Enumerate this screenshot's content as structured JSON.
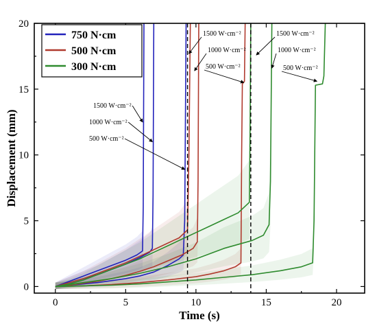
{
  "chart_data": {
    "type": "line",
    "title": "",
    "xlabel": "Time (s)",
    "ylabel": "Displacement (mm)",
    "xlim": [
      -1.5,
      22
    ],
    "ylim": [
      -0.5,
      20
    ],
    "xticks": [
      0,
      5,
      10,
      15,
      20
    ],
    "yticks": [
      0,
      5,
      10,
      15,
      20
    ],
    "grid": false,
    "legend_position": "top-left",
    "groups": [
      {
        "name": "750 N·cm",
        "color": "#2222bb"
      },
      {
        "name": "500 N·cm",
        "color": "#b03a2e"
      },
      {
        "name": "300 N·cm",
        "color": "#2e8b2e"
      }
    ],
    "series": [
      {
        "group": 0,
        "power": "1500 W·cm⁻²",
        "points": [
          [
            0,
            0
          ],
          [
            1,
            0.4
          ],
          [
            2,
            0.8
          ],
          [
            3,
            1.2
          ],
          [
            4,
            1.6
          ],
          [
            5,
            2.0
          ],
          [
            5.8,
            2.4
          ],
          [
            6.2,
            2.7
          ],
          [
            6.25,
            6
          ],
          [
            6.3,
            20
          ]
        ]
      },
      {
        "group": 0,
        "power": "1000 W·cm⁻²",
        "points": [
          [
            0,
            0
          ],
          [
            1,
            0.3
          ],
          [
            2,
            0.6
          ],
          [
            3,
            0.9
          ],
          [
            4,
            1.3
          ],
          [
            5,
            1.7
          ],
          [
            6,
            2.2
          ],
          [
            6.7,
            2.6
          ],
          [
            6.9,
            2.9
          ],
          [
            6.95,
            7
          ],
          [
            7.0,
            20
          ]
        ]
      },
      {
        "group": 0,
        "power": "500 W·cm⁻²",
        "points": [
          [
            0,
            0
          ],
          [
            1,
            0.1
          ],
          [
            2,
            0.2
          ],
          [
            3,
            0.3
          ],
          [
            4,
            0.45
          ],
          [
            5,
            0.6
          ],
          [
            6,
            0.8
          ],
          [
            7,
            1.1
          ],
          [
            8,
            1.6
          ],
          [
            8.8,
            2.1
          ],
          [
            9.1,
            2.4
          ],
          [
            9.2,
            5
          ],
          [
            9.3,
            20
          ]
        ]
      },
      {
        "group": 1,
        "power": "1500 W·cm⁻²",
        "points": [
          [
            0,
            0
          ],
          [
            1,
            0.3
          ],
          [
            2,
            0.6
          ],
          [
            3,
            1.0
          ],
          [
            4,
            1.4
          ],
          [
            5,
            1.8
          ],
          [
            6,
            2.3
          ],
          [
            7,
            2.8
          ],
          [
            8,
            3.3
          ],
          [
            8.8,
            3.7
          ],
          [
            9.4,
            4.3
          ],
          [
            9.5,
            10
          ],
          [
            9.6,
            20
          ]
        ]
      },
      {
        "group": 1,
        "power": "1000 W·cm⁻²",
        "points": [
          [
            0,
            0
          ],
          [
            1,
            0.1
          ],
          [
            2,
            0.25
          ],
          [
            3,
            0.4
          ],
          [
            4,
            0.6
          ],
          [
            5,
            0.85
          ],
          [
            6,
            1.15
          ],
          [
            7,
            1.5
          ],
          [
            8,
            1.95
          ],
          [
            9,
            2.4
          ],
          [
            9.8,
            2.9
          ],
          [
            10.1,
            3.4
          ],
          [
            10.15,
            8
          ],
          [
            10.2,
            20
          ]
        ]
      },
      {
        "group": 1,
        "power": "500 W·cm⁻²",
        "points": [
          [
            0,
            0
          ],
          [
            2,
            0.05
          ],
          [
            4,
            0.15
          ],
          [
            6,
            0.3
          ],
          [
            8,
            0.5
          ],
          [
            10,
            0.75
          ],
          [
            11,
            0.95
          ],
          [
            12,
            1.2
          ],
          [
            12.8,
            1.5
          ],
          [
            13.2,
            1.8
          ],
          [
            13.25,
            10
          ],
          [
            13.3,
            15.4
          ],
          [
            13.45,
            15.6
          ],
          [
            13.5,
            20
          ]
        ]
      },
      {
        "group": 2,
        "power": "1500 W·cm⁻²",
        "points": [
          [
            0,
            0
          ],
          [
            1,
            0.2
          ],
          [
            2,
            0.5
          ],
          [
            3,
            0.9
          ],
          [
            4,
            1.3
          ],
          [
            5,
            1.7
          ],
          [
            6,
            2.1
          ],
          [
            7,
            2.6
          ],
          [
            8,
            3.1
          ],
          [
            9,
            3.6
          ],
          [
            10,
            4.1
          ],
          [
            11,
            4.6
          ],
          [
            12,
            5.1
          ],
          [
            13,
            5.6
          ],
          [
            13.6,
            6.2
          ],
          [
            13.8,
            6.4
          ],
          [
            13.85,
            12
          ],
          [
            13.9,
            20
          ]
        ]
      },
      {
        "group": 2,
        "power": "1000 W·cm⁻²",
        "points": [
          [
            0,
            0
          ],
          [
            2,
            0.3
          ],
          [
            4,
            0.6
          ],
          [
            6,
            1.0
          ],
          [
            8,
            1.5
          ],
          [
            10,
            2.1
          ],
          [
            11,
            2.5
          ],
          [
            12,
            2.9
          ],
          [
            13,
            3.2
          ],
          [
            14,
            3.5
          ],
          [
            14.8,
            3.9
          ],
          [
            15.2,
            4.7
          ],
          [
            15.3,
            8
          ],
          [
            15.4,
            20
          ]
        ]
      },
      {
        "group": 2,
        "power": "500 W·cm⁻²",
        "points": [
          [
            0,
            0
          ],
          [
            2,
            0.05
          ],
          [
            4,
            0.1
          ],
          [
            6,
            0.2
          ],
          [
            8,
            0.35
          ],
          [
            10,
            0.5
          ],
          [
            12,
            0.7
          ],
          [
            14,
            0.9
          ],
          [
            16,
            1.2
          ],
          [
            17.5,
            1.5
          ],
          [
            18.3,
            1.8
          ],
          [
            18.4,
            5
          ],
          [
            18.5,
            15.3
          ],
          [
            19.0,
            15.4
          ],
          [
            19.1,
            16
          ],
          [
            19.2,
            20
          ]
        ]
      }
    ],
    "reference_lines_x": [
      9.4,
      13.9
    ],
    "annotations": [
      {
        "text": "1500 W·cm⁻²",
        "target": [
          6.2,
          12.5
        ]
      },
      {
        "text": "1000 W·cm⁻²",
        "target": [
          6.9,
          11.0
        ]
      },
      {
        "text": "500 W·cm⁻²",
        "target": [
          9.2,
          8.9
        ]
      },
      {
        "text": "1500 W·cm⁻²",
        "target": [
          9.5,
          17.7
        ]
      },
      {
        "text": "1000 W·cm⁻²",
        "target": [
          9.9,
          16.4
        ]
      },
      {
        "text": "500 W·cm⁻²",
        "target": [
          13.4,
          15.5
        ]
      },
      {
        "text": "1500 W·cm⁻²",
        "target": [
          14.3,
          17.6
        ]
      },
      {
        "text": "1000 W·cm⁻²",
        "target": [
          15.4,
          16.6
        ]
      },
      {
        "text": "500 W·cm⁻²",
        "target": [
          18.6,
          15.6
        ]
      }
    ]
  }
}
